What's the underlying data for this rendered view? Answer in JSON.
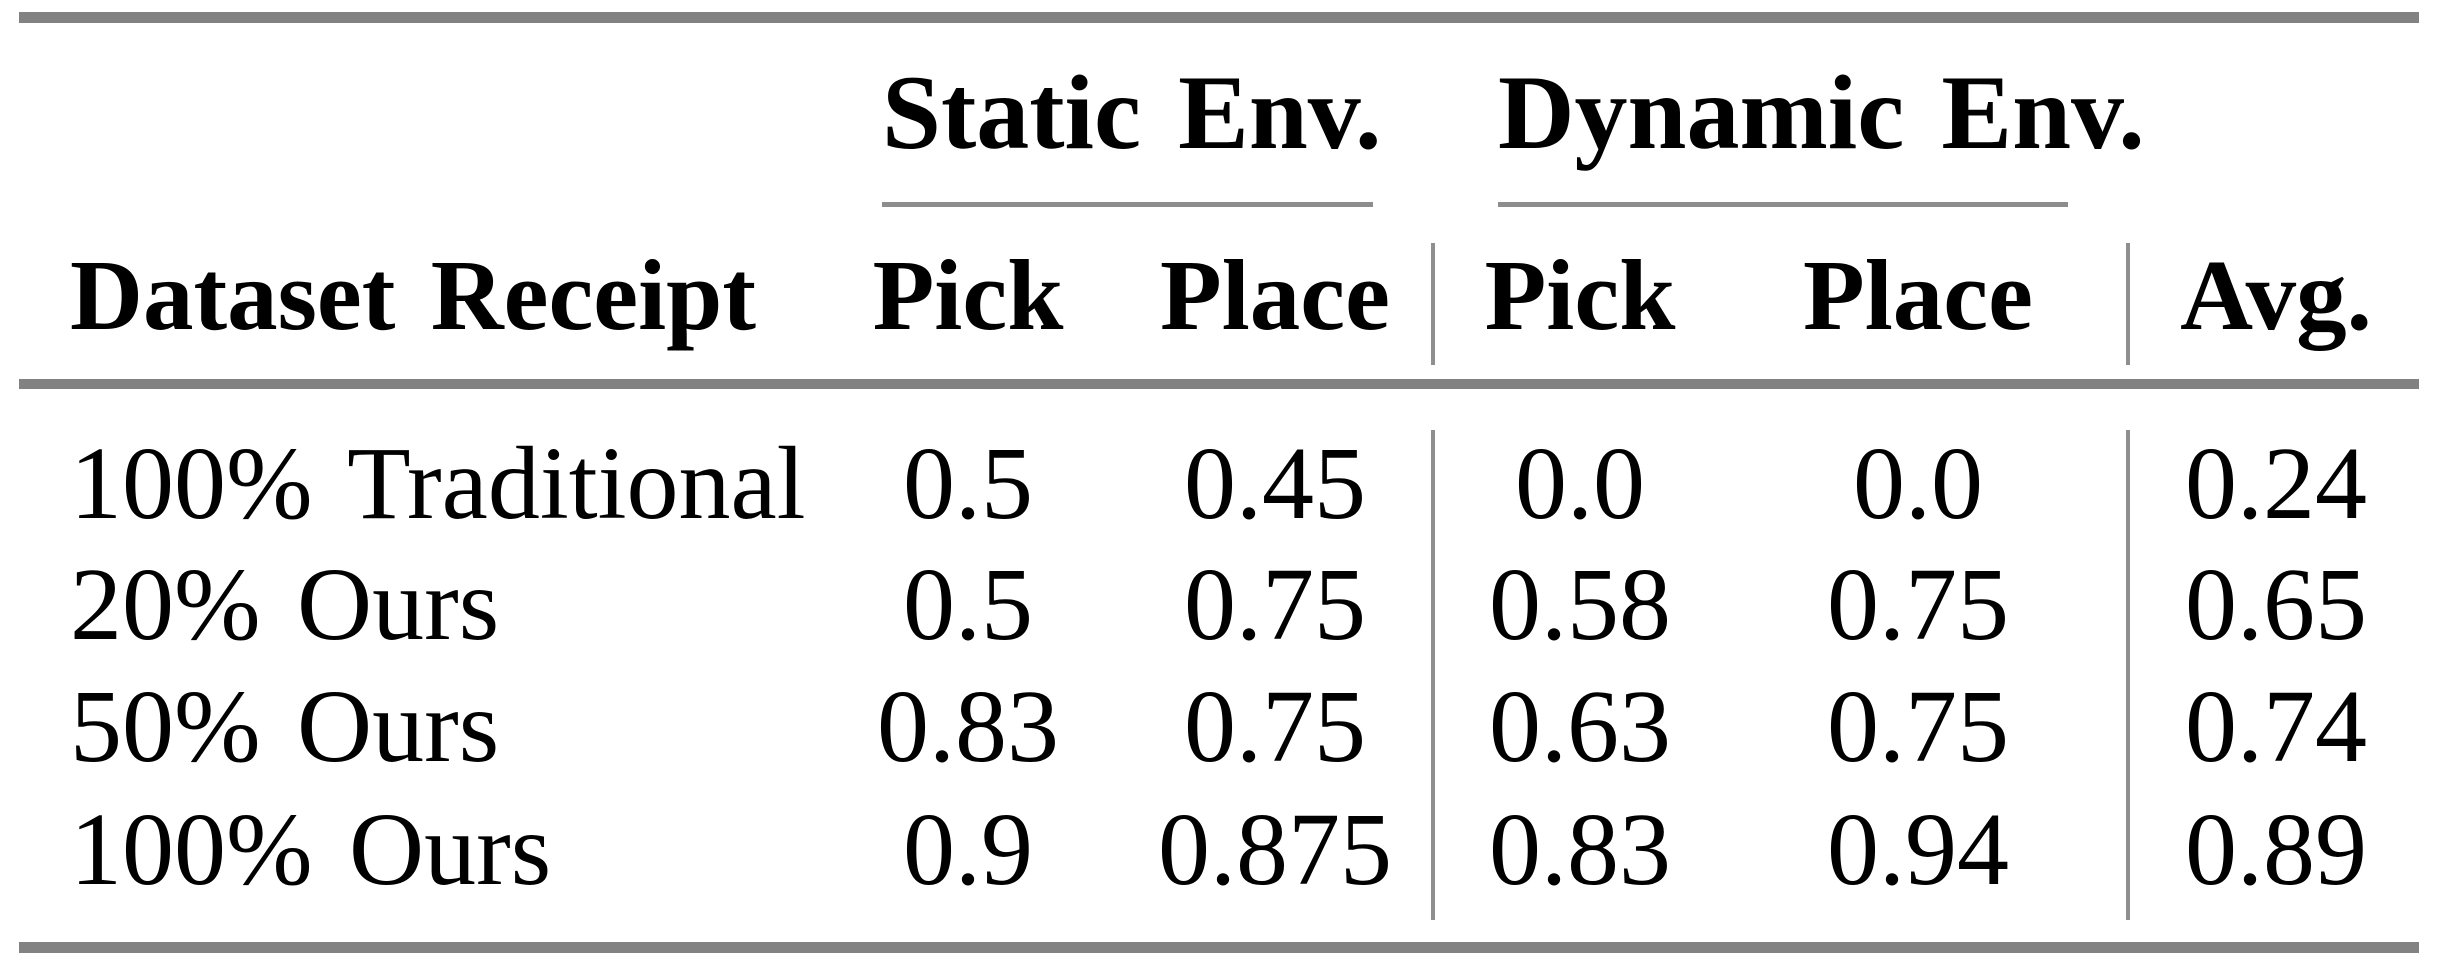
{
  "table": {
    "group_headers": [
      {
        "label": "Static Env."
      },
      {
        "label": "Dynamic Env."
      }
    ],
    "column_headers": {
      "dataset": "Dataset Receipt",
      "static_pick": "Pick",
      "static_place": "Place",
      "dynamic_pick": "Pick",
      "dynamic_place": "Place",
      "avg": "Avg."
    },
    "rows": [
      {
        "label": "100% Traditional",
        "static_pick": "0.5",
        "static_place": "0.45",
        "dynamic_pick": "0.0",
        "dynamic_place": "0.0",
        "avg": "0.24"
      },
      {
        "label": "20% Ours",
        "static_pick": "0.5",
        "static_place": "0.75",
        "dynamic_pick": "0.58",
        "dynamic_place": "0.75",
        "avg": "0.65"
      },
      {
        "label": "50% Ours",
        "static_pick": "0.83",
        "static_place": "0.75",
        "dynamic_pick": "0.63",
        "dynamic_place": "0.75",
        "avg": "0.74"
      },
      {
        "label": "100% Ours",
        "static_pick": "0.9",
        "static_place": "0.875",
        "dynamic_pick": "0.83",
        "dynamic_place": "0.94",
        "avg": "0.89"
      }
    ]
  },
  "colors": {
    "thick_rule": "#828282",
    "thin_rule": "#8d8d8d",
    "separator": "#8f8f8f",
    "text": "#000000",
    "background": "#ffffff"
  }
}
